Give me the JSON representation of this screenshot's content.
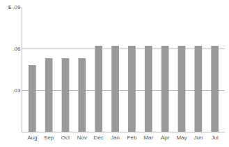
{
  "chart_data": {
    "type": "bar",
    "categories": [
      "Aug",
      "Sep",
      "Oct",
      "Nov",
      "Dec",
      "Jan",
      "Feb",
      "Mar",
      "Apr",
      "May",
      "Jun",
      "Jul"
    ],
    "values": [
      0.048,
      0.053,
      0.053,
      0.053,
      0.062,
      0.062,
      0.062,
      0.062,
      0.062,
      0.062,
      0.062,
      0.062
    ],
    "color": "#9a9a9a",
    "ylim": [
      0,
      0.09
    ],
    "yticks": [
      {
        "value": 0.03,
        "label": ".03"
      },
      {
        "value": 0.06,
        "label": ".06"
      },
      {
        "value": 0.09,
        "label": "$ .09"
      }
    ],
    "grid": true
  }
}
